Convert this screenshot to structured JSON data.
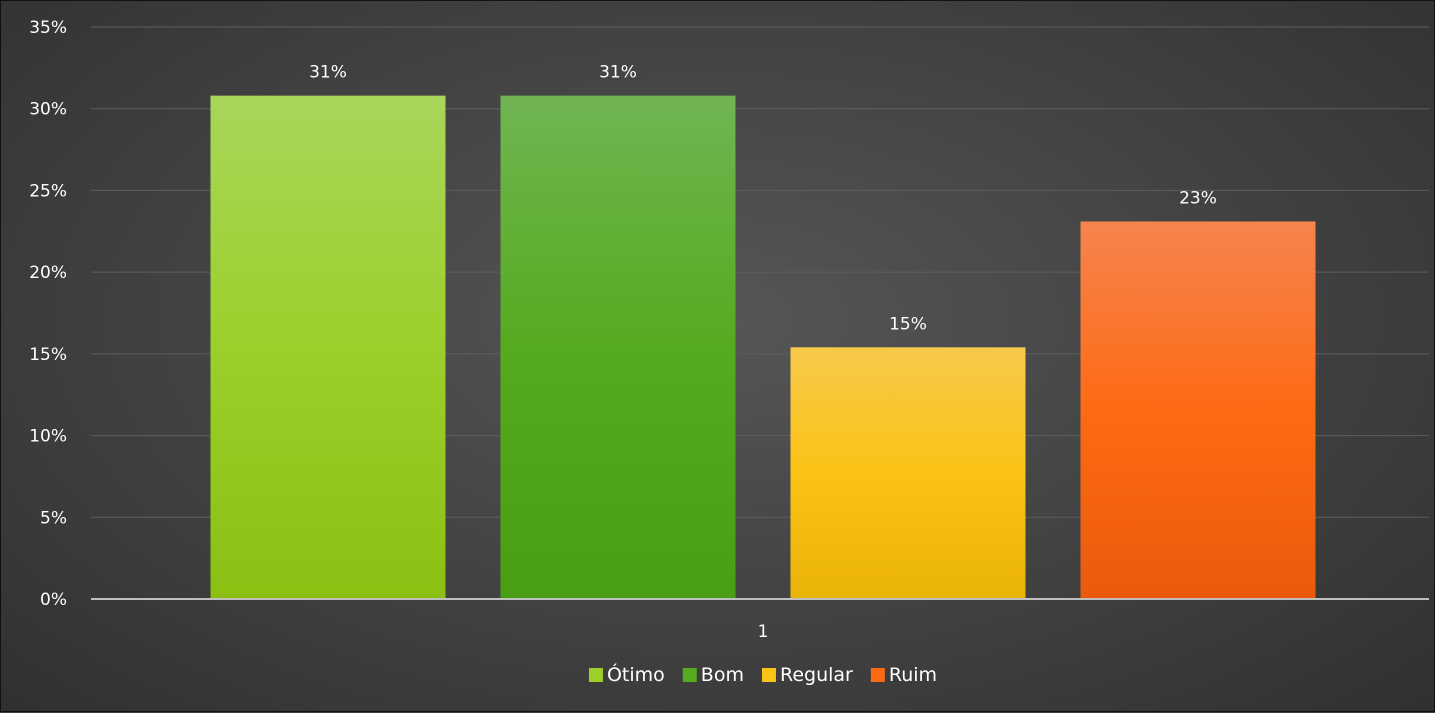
{
  "chart_data": {
    "type": "bar",
    "title": "",
    "xlabel": "",
    "ylabel": "",
    "categories": [
      "1"
    ],
    "ylim": [
      0,
      35
    ],
    "yticks": [
      "0%",
      "5%",
      "10%",
      "15%",
      "20%",
      "25%",
      "30%",
      "35%"
    ],
    "ytick_values": [
      0,
      5,
      10,
      15,
      20,
      25,
      30,
      35
    ],
    "grid": true,
    "legend_position": "bottom",
    "series": [
      {
        "name": "Ótimo",
        "values": [
          30.8
        ],
        "label": "31%",
        "color": "#9ccf2a",
        "color_top": "#a8d65a",
        "color_bottom": "#8bbf12"
      },
      {
        "name": "Bom",
        "values": [
          30.8
        ],
        "label": "31%",
        "color": "#56aa1f",
        "color_top": "#70b552",
        "color_bottom": "#4a9e14"
      },
      {
        "name": "Regular",
        "values": [
          15.4
        ],
        "label": "15%",
        "color": "#fbc315",
        "color_top": "#f7c94c",
        "color_bottom": "#eab308"
      },
      {
        "name": "Ruim",
        "values": [
          23.1
        ],
        "label": "23%",
        "color": "#fd6a14",
        "color_top": "#f6844e",
        "color_bottom": "#ea5a0c"
      }
    ]
  }
}
